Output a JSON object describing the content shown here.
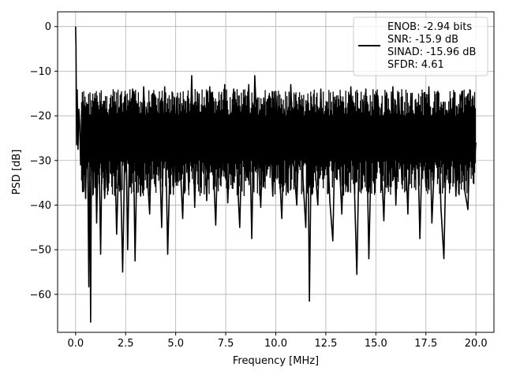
{
  "chart_data": {
    "type": "line",
    "title": "",
    "xlabel": "Frequency [MHz]",
    "ylabel": "PSD [dB]",
    "xlim": [
      -0.9,
      20.9
    ],
    "ylim": [
      -68.5,
      3.3
    ],
    "xticks": [
      0.0,
      2.5,
      5.0,
      7.5,
      10.0,
      12.5,
      15.0,
      17.5,
      20.0
    ],
    "xtick_labels": [
      "0.0",
      "2.5",
      "5.0",
      "7.5",
      "10.0",
      "12.5",
      "15.0",
      "17.5",
      "20.0"
    ],
    "yticks": [
      0,
      -10,
      -20,
      -30,
      -40,
      -50,
      -60
    ],
    "ytick_labels": [
      "0",
      "−10",
      "−20",
      "−30",
      "−40",
      "−50",
      "−60"
    ],
    "grid": true,
    "legend_position": "top-right",
    "legend_lines": [
      "ENOB: -2.94 bits",
      "SNR: -15.9 dB",
      "SINAD: -15.96 dB",
      "SFDR: 4.61"
    ],
    "series": [
      {
        "color": "#000000",
        "x": [
          0.0,
          0.02,
          0.05,
          0.08,
          0.12,
          0.16,
          0.2,
          0.25,
          0.3,
          0.35,
          0.42,
          0.5,
          0.58,
          0.66,
          0.7,
          0.75,
          0.8,
          0.88,
          0.95,
          1.05,
          1.15,
          1.25,
          1.35,
          1.45,
          1.6,
          1.75,
          1.9,
          2.05,
          2.2,
          2.35,
          2.5,
          2.6,
          2.7,
          2.85,
          2.97,
          3.1,
          3.25,
          3.4,
          3.55,
          3.7,
          3.85,
          4.0,
          4.15,
          4.3,
          4.45,
          4.6,
          4.75,
          4.9,
          5.05,
          5.2,
          5.35,
          5.5,
          5.65,
          5.8,
          5.95,
          6.1,
          6.25,
          6.4,
          6.55,
          6.7,
          6.85,
          7.0,
          7.15,
          7.3,
          7.45,
          7.6,
          7.75,
          7.9,
          8.05,
          8.2,
          8.35,
          8.5,
          8.65,
          8.8,
          8.95,
          9.1,
          9.25,
          9.4,
          9.55,
          9.7,
          9.85,
          10.0,
          10.15,
          10.3,
          10.45,
          10.6,
          10.75,
          10.9,
          11.05,
          11.2,
          11.35,
          11.5,
          11.6,
          11.68,
          11.8,
          11.95,
          12.1,
          12.25,
          12.4,
          12.55,
          12.7,
          12.85,
          13.0,
          13.15,
          13.3,
          13.45,
          13.6,
          13.75,
          13.9,
          14.05,
          14.2,
          14.35,
          14.5,
          14.65,
          14.8,
          14.95,
          15.1,
          15.25,
          15.4,
          15.55,
          15.7,
          15.85,
          16.0,
          16.15,
          16.3,
          16.45,
          16.6,
          16.75,
          16.9,
          17.05,
          17.2,
          17.35,
          17.5,
          17.65,
          17.8,
          17.95,
          18.1,
          18.25,
          18.4,
          18.55,
          18.7,
          18.85,
          19.0,
          19.15,
          19.3,
          19.45,
          19.6,
          19.75,
          19.9,
          20.0
        ],
        "y": [
          0.0,
          -4.8,
          -26.5,
          -14.2,
          -27.5,
          -18.5,
          -21.5,
          -31.0,
          -19.0,
          -37.0,
          -22.0,
          -38.5,
          -17.5,
          -58.3,
          -25.0,
          -66.2,
          -19.5,
          -37.5,
          -16.0,
          -44.0,
          -22.0,
          -51.0,
          -17.5,
          -38.5,
          -22.0,
          -30.0,
          -17.0,
          -46.5,
          -23.0,
          -55.0,
          -17.0,
          -50.0,
          -25.0,
          -14.0,
          -52.5,
          -20.0,
          -38.0,
          -13.5,
          -31.0,
          -42.0,
          -15.0,
          -33.0,
          -22.0,
          -45.0,
          -13.5,
          -51.0,
          -24.0,
          -36.0,
          -16.0,
          -28.0,
          -43.0,
          -18.0,
          -36.5,
          -11.0,
          -40.5,
          -15.0,
          -31.0,
          -20.0,
          -39.0,
          -13.5,
          -28.0,
          -44.5,
          -19.0,
          -33.0,
          -13.0,
          -39.5,
          -23.0,
          -14.0,
          -31.0,
          -45.0,
          -17.5,
          -34.5,
          -13.0,
          -47.5,
          -11.0,
          -27.0,
          -40.5,
          -16.0,
          -33.0,
          -21.0,
          -38.0,
          -14.5,
          -29.0,
          -43.0,
          -19.0,
          -37.0,
          -13.0,
          -31.0,
          -40.0,
          -16.5,
          -33.5,
          -45.0,
          -21.0,
          -61.5,
          -17.5,
          -30.5,
          -40.0,
          -14.0,
          -34.0,
          -22.0,
          -39.0,
          -48.0,
          -16.5,
          -28.0,
          -42.0,
          -19.5,
          -37.0,
          -13.5,
          -31.5,
          -55.5,
          -18.5,
          -33.0,
          -14.0,
          -52.0,
          -21.0,
          -37.0,
          -15.5,
          -28.0,
          -43.5,
          -19.0,
          -33.0,
          -13.5,
          -40.0,
          -16.0,
          -35.0,
          -23.0,
          -42.0,
          -15.0,
          -31.0,
          -18.0,
          -47.5,
          -21.0,
          -36.0,
          -13.5,
          -44.0,
          -28.0,
          -14.5,
          -40.5,
          -52.0,
          -19.0,
          -33.0,
          -16.0,
          -38.0,
          -20.0,
          -14.5,
          -37.0,
          -41.0,
          -18.0,
          -32.0,
          -26.0
        ]
      }
    ]
  }
}
